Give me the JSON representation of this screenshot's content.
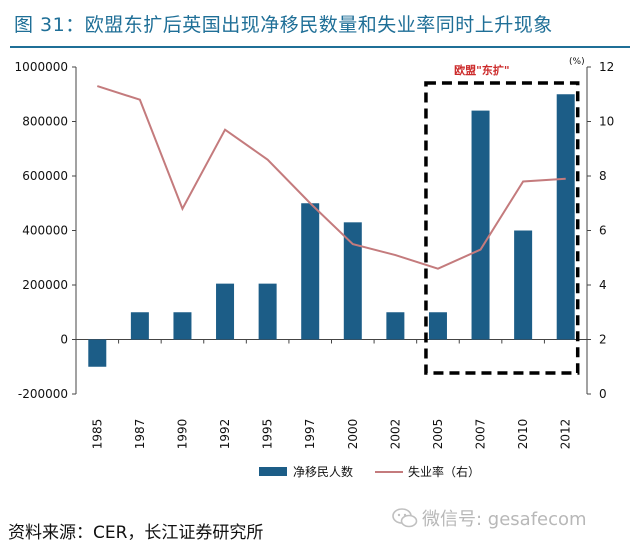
{
  "figure": {
    "title": "图  31：欧盟东扩后英国出现净移民数量和失业率同时上升现象",
    "source": "资料来源：CER，长江证券研究所",
    "watermark": "微信号: gesafecom"
  },
  "colors": {
    "title": "#1f6f97",
    "bar": "#1c5d87",
    "line": "#c47b7d",
    "annotation": "#cc2a2a",
    "box": "#000000"
  },
  "chart_data": {
    "type": "bar",
    "categories": [
      "1985",
      "1987",
      "1990",
      "1992",
      "1995",
      "1997",
      "2000",
      "2002",
      "2005",
      "2007",
      "2010",
      "2012"
    ],
    "series": [
      {
        "name": "净移民人数",
        "type": "bar",
        "axis": "left",
        "values": [
          -100000,
          100000,
          100000,
          205000,
          205000,
          500000,
          430000,
          100000,
          100000,
          840000,
          400000,
          900000
        ]
      },
      {
        "name": "失业率（右）",
        "type": "line",
        "axis": "right",
        "values": [
          11.3,
          10.8,
          6.8,
          9.7,
          8.6,
          7.0,
          5.5,
          5.1,
          4.6,
          5.3,
          7.8,
          7.9
        ]
      }
    ],
    "y_left": {
      "min": -200000,
      "max": 1000000,
      "ticks": [
        "-200000",
        "0",
        "200000",
        "400000",
        "600000",
        "800000",
        "1000000"
      ]
    },
    "y_right": {
      "min": 0,
      "max": 12,
      "unit": "(%)",
      "ticks": [
        "0",
        "2",
        "4",
        "6",
        "8",
        "10",
        "12"
      ]
    },
    "annotation": {
      "text": "欧盟\"东扩\"",
      "from_category": "2005",
      "to_category": "2012"
    },
    "legend_position": "bottom",
    "grid": false
  }
}
